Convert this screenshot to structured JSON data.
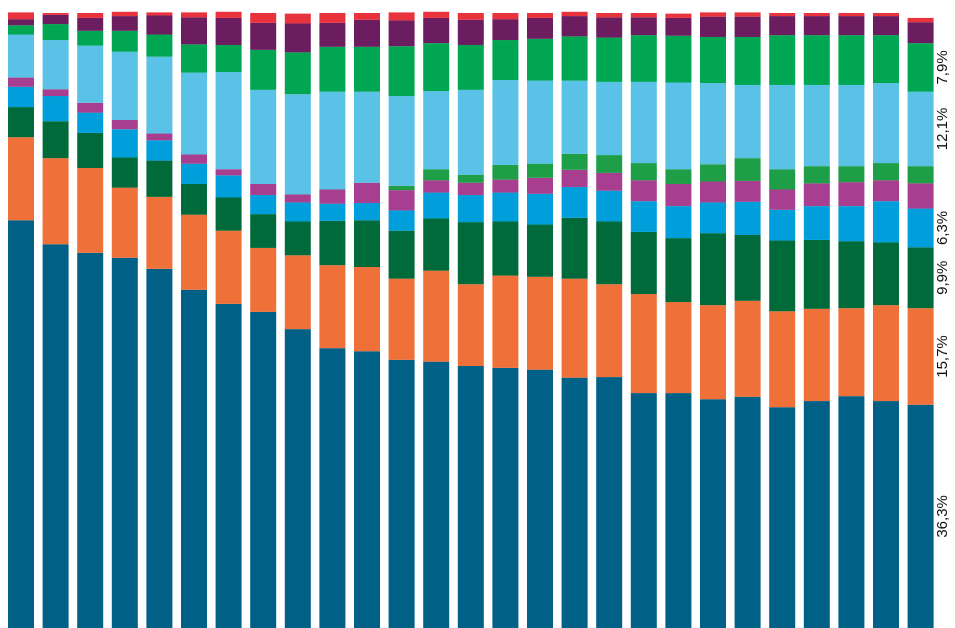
{
  "chart_data": {
    "type": "stacked_bar_100",
    "ylim": [
      0,
      100
    ],
    "series": [
      {
        "color": "#006085",
        "values": [
          66.3,
          62.4,
          61.0,
          60.2,
          58.4,
          55.0,
          52.7,
          51.4,
          48.6,
          45.5,
          45.0,
          43.6,
          43.3,
          42.6,
          42.3,
          42.0,
          40.7,
          40.8,
          38.2,
          38.2,
          37.2,
          37.6,
          35.9,
          36.9,
          37.7,
          36.9,
          36.3
        ],
        "value_labels": [
          null,
          null,
          null,
          null,
          null,
          null,
          null,
          null,
          null,
          null,
          null,
          null,
          null,
          null,
          null,
          null,
          null,
          null,
          null,
          null,
          null,
          null,
          null,
          null,
          null,
          null,
          "36,3%"
        ]
      },
      {
        "color": "#ef7139",
        "values": [
          13.5,
          14.0,
          13.8,
          11.4,
          11.7,
          12.2,
          11.9,
          10.4,
          12.0,
          13.5,
          13.7,
          13.2,
          14.8,
          13.3,
          15.0,
          15.1,
          16.1,
          15.1,
          16.1,
          14.8,
          15.3,
          15.6,
          15.6,
          15.0,
          14.3,
          15.6,
          15.7
        ],
        "value_labels": [
          null,
          null,
          null,
          null,
          null,
          null,
          null,
          null,
          null,
          null,
          null,
          null,
          null,
          null,
          null,
          null,
          null,
          null,
          null,
          null,
          null,
          null,
          null,
          null,
          null,
          null,
          "15,7%"
        ]
      },
      {
        "color": "#006a3a",
        "values": [
          4.9,
          6.0,
          5.7,
          4.9,
          5.9,
          5.0,
          5.4,
          5.5,
          5.5,
          7.2,
          7.6,
          7.8,
          8.5,
          10.1,
          8.8,
          8.5,
          9.9,
          10.2,
          10.1,
          10.4,
          11.7,
          10.7,
          11.5,
          11.2,
          10.9,
          10.2,
          9.9
        ],
        "value_labels": [
          null,
          null,
          null,
          null,
          null,
          null,
          null,
          null,
          null,
          null,
          null,
          null,
          null,
          null,
          null,
          null,
          null,
          null,
          null,
          null,
          null,
          null,
          null,
          null,
          null,
          null,
          "9,9%"
        ]
      },
      {
        "color": "#009fdb",
        "values": [
          3.3,
          4.1,
          3.3,
          4.6,
          3.3,
          3.3,
          3.6,
          3.1,
          3.1,
          2.8,
          2.8,
          3.3,
          4.2,
          4.4,
          4.7,
          5.0,
          5.0,
          5.0,
          5.0,
          5.2,
          5.0,
          5.4,
          5.0,
          5.5,
          5.7,
          6.7,
          6.3
        ],
        "value_labels": [
          null,
          null,
          null,
          null,
          null,
          null,
          null,
          null,
          null,
          null,
          null,
          null,
          null,
          null,
          null,
          null,
          null,
          null,
          null,
          null,
          null,
          null,
          null,
          null,
          null,
          null,
          "6,3%"
        ]
      },
      {
        "color": "#a83e8f",
        "values": [
          1.5,
          1.1,
          1.6,
          1.5,
          1.1,
          1.5,
          1.0,
          1.8,
          1.3,
          2.3,
          3.3,
          3.3,
          2.0,
          2.0,
          2.1,
          2.6,
          2.8,
          2.9,
          3.4,
          3.6,
          3.4,
          3.4,
          3.3,
          3.7,
          3.9,
          3.4,
          4.1
        ]
      },
      {
        "color": "#1f9e48",
        "values": [
          0,
          0,
          0,
          0,
          0,
          0,
          0,
          0,
          0,
          0,
          0,
          0.7,
          1.8,
          1.3,
          2.4,
          2.3,
          2.6,
          2.9,
          2.8,
          2.4,
          2.8,
          3.7,
          3.3,
          2.8,
          2.6,
          2.8,
          2.8
        ]
      },
      {
        "color": "#5bc2e7",
        "values": [
          7.0,
          8.0,
          9.3,
          11.1,
          12.5,
          13.3,
          15.8,
          15.3,
          16.3,
          15.9,
          14.8,
          14.6,
          12.7,
          13.8,
          13.8,
          13.5,
          11.9,
          11.9,
          13.2,
          14.1,
          13.2,
          11.9,
          13.7,
          13.2,
          13.2,
          13.0,
          12.1
        ],
        "value_labels": [
          null,
          null,
          null,
          null,
          null,
          null,
          null,
          null,
          null,
          null,
          null,
          null,
          null,
          null,
          null,
          null,
          null,
          null,
          null,
          null,
          null,
          null,
          null,
          null,
          null,
          null,
          "12,1%"
        ]
      },
      {
        "color": "#00a651",
        "values": [
          1.5,
          2.6,
          2.4,
          3.4,
          3.6,
          4.6,
          4.4,
          6.5,
          6.8,
          7.3,
          7.3,
          8.1,
          7.8,
          7.3,
          6.5,
          6.8,
          7.2,
          7.2,
          7.6,
          7.6,
          7.5,
          7.8,
          8.1,
          8.1,
          8.1,
          7.8,
          7.9
        ],
        "value_labels": [
          null,
          null,
          null,
          null,
          null,
          null,
          null,
          null,
          null,
          null,
          null,
          null,
          null,
          null,
          null,
          null,
          null,
          null,
          null,
          null,
          null,
          null,
          null,
          null,
          null,
          null,
          "7,9%"
        ]
      },
      {
        "color": "#6c1d5f",
        "values": [
          1.0,
          1.5,
          2.1,
          2.4,
          3.1,
          4.4,
          4.4,
          4.4,
          4.7,
          3.9,
          4.4,
          4.2,
          4.1,
          4.1,
          3.4,
          3.4,
          3.3,
          3.3,
          2.9,
          2.9,
          3.3,
          3.3,
          3.1,
          3.1,
          3.1,
          3.1,
          3.4
        ]
      },
      {
        "color": "#e8323c",
        "values": [
          1.1,
          0.3,
          0.8,
          0.7,
          0.5,
          0.8,
          1.0,
          1.6,
          1.6,
          1.6,
          1.1,
          1.3,
          1.0,
          1.1,
          1.0,
          0.8,
          0.7,
          0.7,
          0.7,
          0.7,
          0.7,
          0.7,
          0.5,
          0.5,
          0.5,
          0.5,
          0.7
        ]
      }
    ]
  }
}
